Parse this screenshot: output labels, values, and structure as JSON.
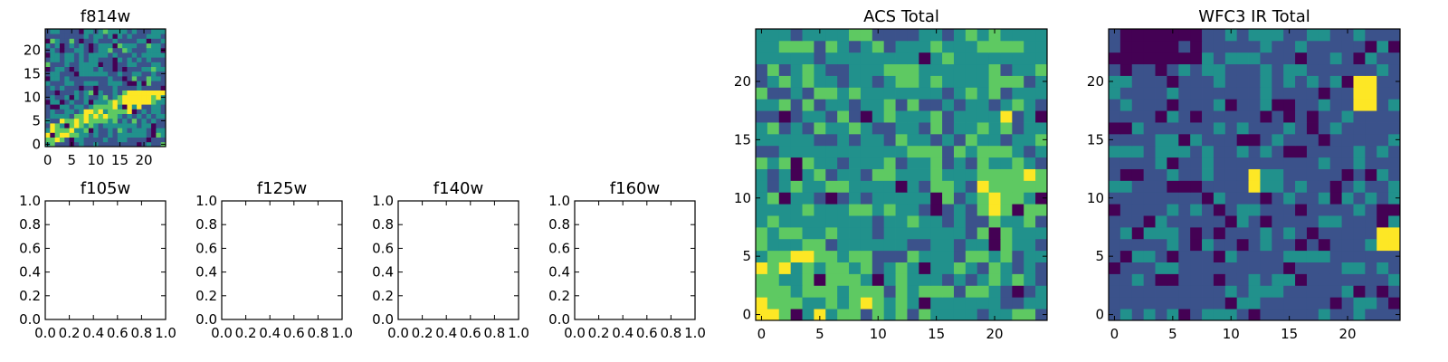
{
  "colormap": [
    "#440154",
    "#3b528b",
    "#21918c",
    "#5ec962",
    "#fde725"
  ],
  "chart_data": [
    {
      "id": "f814w",
      "type": "heatmap",
      "title": "f814w",
      "grid_size": 25,
      "xticks": [
        0,
        5,
        10,
        15,
        20
      ],
      "yticks": [
        0,
        5,
        10,
        15,
        20
      ],
      "xlim": [
        -0.5,
        24.5
      ],
      "ylim": [
        -0.5,
        24.5
      ],
      "pattern": "diagonal-band",
      "seed": 11
    },
    {
      "id": "f105w",
      "type": "empty",
      "title": "f105w",
      "xticks": [
        "0.0",
        "0.2",
        "0.4",
        "0.6",
        "0.8",
        "1.0"
      ],
      "yticks": [
        "0.0",
        "0.2",
        "0.4",
        "0.6",
        "0.8",
        "1.0"
      ],
      "xlim": [
        0,
        1
      ],
      "ylim": [
        0,
        1
      ]
    },
    {
      "id": "f125w",
      "type": "empty",
      "title": "f125w",
      "xticks": [
        "0.0",
        "0.2",
        "0.4",
        "0.6",
        "0.8",
        "1.0"
      ],
      "yticks": [
        "0.0",
        "0.2",
        "0.4",
        "0.6",
        "0.8",
        "1.0"
      ],
      "xlim": [
        0,
        1
      ],
      "ylim": [
        0,
        1
      ]
    },
    {
      "id": "f140w",
      "type": "empty",
      "title": "f140w",
      "xticks": [
        "0.0",
        "0.2",
        "0.4",
        "0.6",
        "0.8",
        "1.0"
      ],
      "yticks": [
        "0.0",
        "0.2",
        "0.4",
        "0.6",
        "0.8",
        "1.0"
      ],
      "xlim": [
        0,
        1
      ],
      "ylim": [
        0,
        1
      ]
    },
    {
      "id": "f160w",
      "type": "empty",
      "title": "f160w",
      "xticks": [
        "0.0",
        "0.2",
        "0.4",
        "0.6",
        "0.8",
        "1.0"
      ],
      "yticks": [
        "0.0",
        "0.2",
        "0.4",
        "0.6",
        "0.8",
        "1.0"
      ],
      "xlim": [
        0,
        1
      ],
      "ylim": [
        0,
        1
      ]
    },
    {
      "id": "acs-total",
      "type": "heatmap",
      "title": "ACS Total",
      "grid_size": 25,
      "xticks": [
        0,
        5,
        10,
        15,
        20
      ],
      "yticks": [
        0,
        5,
        10,
        15,
        20
      ],
      "xlim": [
        -0.5,
        24.5
      ],
      "ylim": [
        -0.5,
        24.5
      ],
      "pattern": "bright-lower-left",
      "seed": 29
    },
    {
      "id": "wfc3-ir-total",
      "type": "heatmap",
      "title": "WFC3 IR Total",
      "grid_size": 25,
      "xticks": [
        0,
        5,
        10,
        15,
        20
      ],
      "yticks": [
        0,
        5,
        10,
        15,
        20
      ],
      "xlim": [
        -0.5,
        24.5
      ],
      "ylim": [
        -0.5,
        24.5
      ],
      "pattern": "dim-with-hotspots",
      "seed": 47
    }
  ]
}
